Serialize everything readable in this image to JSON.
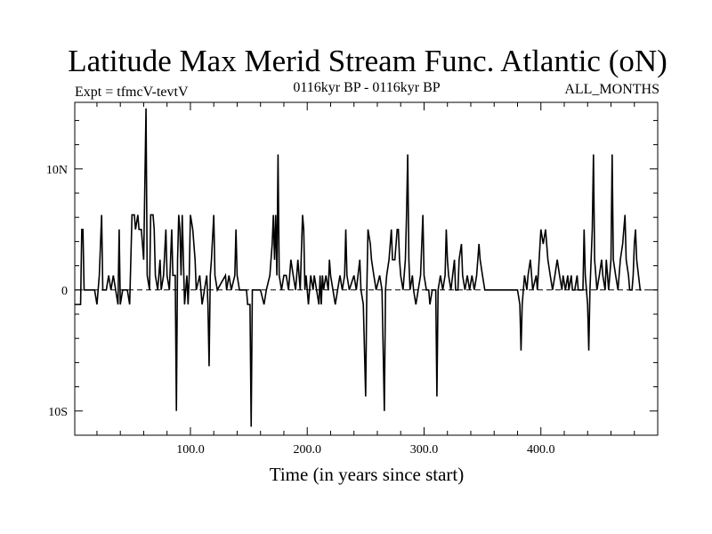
{
  "chart_data": {
    "type": "line",
    "title": "Latitude Max Merid Stream Func. Atlantic (oN)",
    "subtitle_left": "Expt = tfmcV-tevtV",
    "subtitle_center": "0116kyr BP - 0116kyr BP",
    "subtitle_right": "ALL_MONTHS",
    "xlabel": "Time (in years since start)",
    "ylabel": "",
    "xlim": [
      1,
      500
    ],
    "ylim": [
      -12,
      15.5
    ],
    "x_ticks": [
      100,
      200,
      300,
      400
    ],
    "x_tick_labels": [
      "100.0",
      "200.0",
      "300.0",
      "400.0"
    ],
    "y_ticks": [
      -10,
      0,
      10
    ],
    "y_tick_labels": [
      "10S",
      "0",
      "10N"
    ],
    "zero_line": "dashed",
    "grid": false,
    "series": [
      {
        "values": [
          [
            1,
            -1.2
          ],
          [
            6,
            -1.2
          ],
          [
            7,
            5
          ],
          [
            8,
            5
          ],
          [
            9,
            0
          ],
          [
            18,
            0
          ],
          [
            20,
            -1.2
          ],
          [
            22,
            1.2
          ],
          [
            24,
            6.2
          ],
          [
            25,
            0
          ],
          [
            28,
            0
          ],
          [
            30,
            1.2
          ],
          [
            32,
            0
          ],
          [
            34,
            1.2
          ],
          [
            36,
            0
          ],
          [
            38,
            -1.2
          ],
          [
            39,
            5
          ],
          [
            40,
            -1.2
          ],
          [
            42,
            0
          ],
          [
            46,
            0
          ],
          [
            48,
            -1.2
          ],
          [
            50,
            6.2
          ],
          [
            52,
            6.2
          ],
          [
            53,
            5
          ],
          [
            55,
            6.2
          ],
          [
            56,
            5
          ],
          [
            58,
            5
          ],
          [
            60,
            2.5
          ],
          [
            62,
            15
          ],
          [
            63,
            1.2
          ],
          [
            65,
            0
          ],
          [
            66,
            6.2
          ],
          [
            68,
            6.2
          ],
          [
            69,
            5
          ],
          [
            70,
            1.2
          ],
          [
            72,
            0
          ],
          [
            74,
            2.5
          ],
          [
            75,
            0
          ],
          [
            77,
            1.2
          ],
          [
            79,
            5
          ],
          [
            80,
            1.2
          ],
          [
            82,
            0
          ],
          [
            84,
            5
          ],
          [
            85,
            1.2
          ],
          [
            87,
            1.2
          ],
          [
            88,
            -10
          ],
          [
            89,
            2.5
          ],
          [
            90,
            6.2
          ],
          [
            91,
            5
          ],
          [
            92,
            1.2
          ],
          [
            93,
            6.2
          ],
          [
            95,
            -1.2
          ],
          [
            97,
            1.2
          ],
          [
            98,
            -1.2
          ],
          [
            99,
            1.2
          ],
          [
            100,
            6.2
          ],
          [
            102,
            5
          ],
          [
            104,
            2.5
          ],
          [
            105,
            0
          ],
          [
            108,
            1.2
          ],
          [
            110,
            -1.2
          ],
          [
            112,
            0
          ],
          [
            114,
            1.2
          ],
          [
            115,
            -1.2
          ],
          [
            116,
            -6.3
          ],
          [
            117,
            1.2
          ],
          [
            118,
            2.5
          ],
          [
            120,
            6.2
          ],
          [
            121,
            1.2
          ],
          [
            123,
            0
          ],
          [
            130,
            1.2
          ],
          [
            131,
            0
          ],
          [
            133,
            1.2
          ],
          [
            135,
            0
          ],
          [
            138,
            1.2
          ],
          [
            139,
            5
          ],
          [
            140,
            1.2
          ],
          [
            142,
            0
          ],
          [
            148,
            0
          ],
          [
            149,
            -1.2
          ],
          [
            151,
            -1.2
          ],
          [
            152,
            -11.3
          ],
          [
            153,
            0
          ],
          [
            160,
            0
          ],
          [
            163,
            -1.2
          ],
          [
            165,
            0
          ],
          [
            168,
            1.2
          ],
          [
            170,
            3.8
          ],
          [
            171,
            6.2
          ],
          [
            172,
            2.5
          ],
          [
            173,
            6.2
          ],
          [
            174,
            1.2
          ],
          [
            175,
            11.2
          ],
          [
            176,
            1.2
          ],
          [
            178,
            0
          ],
          [
            180,
            1.2
          ],
          [
            182,
            1.2
          ],
          [
            184,
            0
          ],
          [
            186,
            2.5
          ],
          [
            188,
            1.2
          ],
          [
            190,
            0
          ],
          [
            191,
            1.2
          ],
          [
            192,
            2.5
          ],
          [
            193,
            1.2
          ],
          [
            194,
            0
          ],
          [
            196,
            6.2
          ],
          [
            197,
            5
          ],
          [
            198,
            0
          ],
          [
            199,
            1.2
          ],
          [
            200,
            0
          ],
          [
            201,
            -1.2
          ],
          [
            203,
            1.2
          ],
          [
            205,
            0
          ],
          [
            206,
            1.2
          ],
          [
            208,
            0
          ],
          [
            210,
            -1.2
          ],
          [
            211,
            1.2
          ],
          [
            212,
            -1.2
          ],
          [
            213,
            1.2
          ],
          [
            214,
            0
          ],
          [
            216,
            1.2
          ],
          [
            218,
            0
          ],
          [
            219,
            2.5
          ],
          [
            220,
            1.2
          ],
          [
            222,
            0
          ],
          [
            224,
            -1.2
          ],
          [
            226,
            0
          ],
          [
            228,
            1.2
          ],
          [
            230,
            0
          ],
          [
            232,
            1.2
          ],
          [
            233,
            5
          ],
          [
            234,
            1.2
          ],
          [
            236,
            0
          ],
          [
            240,
            1.2
          ],
          [
            242,
            0
          ],
          [
            245,
            2.5
          ],
          [
            246,
            0
          ],
          [
            248,
            -1.2
          ],
          [
            250,
            -8.8
          ],
          [
            251,
            0
          ],
          [
            252,
            5
          ],
          [
            254,
            3.8
          ],
          [
            255,
            2.5
          ],
          [
            257,
            1.2
          ],
          [
            259,
            0
          ],
          [
            262,
            1.2
          ],
          [
            264,
            0
          ],
          [
            266,
            -10
          ],
          [
            267,
            0
          ],
          [
            268,
            1.2
          ],
          [
            270,
            2.5
          ],
          [
            272,
            5
          ],
          [
            273,
            2.5
          ],
          [
            275,
            2.5
          ],
          [
            277,
            5
          ],
          [
            278,
            5
          ],
          [
            279,
            2.5
          ],
          [
            280,
            1.2
          ],
          [
            282,
            0
          ],
          [
            284,
            2.5
          ],
          [
            285,
            6.2
          ],
          [
            286,
            11.2
          ],
          [
            287,
            2.5
          ],
          [
            288,
            0
          ],
          [
            290,
            1.2
          ],
          [
            291,
            0
          ],
          [
            293,
            -1.2
          ],
          [
            295,
            0
          ],
          [
            297,
            1.2
          ],
          [
            299,
            6.2
          ],
          [
            300,
            1.2
          ],
          [
            302,
            0
          ],
          [
            304,
            0
          ],
          [
            305,
            -1.2
          ],
          [
            307,
            0
          ],
          [
            310,
            0
          ],
          [
            311,
            -8.8
          ],
          [
            312,
            0
          ],
          [
            314,
            1.2
          ],
          [
            316,
            0
          ],
          [
            318,
            1.2
          ],
          [
            319,
            5
          ],
          [
            320,
            2.5
          ],
          [
            321,
            1.2
          ],
          [
            323,
            0
          ],
          [
            326,
            2.5
          ],
          [
            327,
            0
          ],
          [
            329,
            0
          ],
          [
            330,
            2.5
          ],
          [
            332,
            3.8
          ],
          [
            333,
            1.2
          ],
          [
            335,
            0
          ],
          [
            337,
            1.2
          ],
          [
            339,
            0
          ],
          [
            341,
            1.2
          ],
          [
            343,
            0
          ],
          [
            345,
            1.2
          ],
          [
            346,
            2.5
          ],
          [
            347,
            3.8
          ],
          [
            348,
            2.5
          ],
          [
            350,
            1.2
          ],
          [
            352,
            0
          ],
          [
            380,
            0
          ],
          [
            382,
            -1.2
          ],
          [
            383,
            -5
          ],
          [
            384,
            -1.2
          ],
          [
            386,
            1.2
          ],
          [
            388,
            0
          ],
          [
            389,
            1.2
          ],
          [
            391,
            2.5
          ],
          [
            393,
            0
          ],
          [
            396,
            1.2
          ],
          [
            397,
            0
          ],
          [
            400,
            5
          ],
          [
            402,
            3.8
          ],
          [
            404,
            5
          ],
          [
            406,
            2.5
          ],
          [
            408,
            1.2
          ],
          [
            410,
            0
          ],
          [
            412,
            1.2
          ],
          [
            414,
            2.5
          ],
          [
            416,
            1.2
          ],
          [
            418,
            0
          ],
          [
            419,
            1.2
          ],
          [
            421,
            0
          ],
          [
            423,
            1.2
          ],
          [
            424,
            0
          ],
          [
            426,
            1.2
          ],
          [
            427,
            0
          ],
          [
            429,
            0
          ],
          [
            431,
            1.2
          ],
          [
            432,
            0
          ],
          [
            436,
            0
          ],
          [
            437,
            5
          ],
          [
            438,
            1.2
          ],
          [
            440,
            -1.2
          ],
          [
            441,
            -5
          ],
          [
            442,
            0
          ],
          [
            444,
            5
          ],
          [
            445,
            11.2
          ],
          [
            446,
            2.5
          ],
          [
            448,
            0
          ],
          [
            450,
            1.2
          ],
          [
            452,
            2.5
          ],
          [
            453,
            1.2
          ],
          [
            455,
            0
          ],
          [
            456,
            2.5
          ],
          [
            458,
            0
          ],
          [
            460,
            2.5
          ],
          [
            461,
            11.2
          ],
          [
            462,
            2.5
          ],
          [
            464,
            1.2
          ],
          [
            466,
            0
          ],
          [
            468,
            2.5
          ],
          [
            470,
            3.8
          ],
          [
            472,
            6.2
          ],
          [
            473,
            2.5
          ],
          [
            475,
            1.2
          ],
          [
            476,
            0
          ],
          [
            478,
            0
          ],
          [
            479,
            1.2
          ],
          [
            480,
            3.8
          ],
          [
            481,
            5
          ],
          [
            482,
            2.5
          ],
          [
            485,
            0
          ],
          [
            486,
            0
          ]
        ]
      }
    ]
  }
}
